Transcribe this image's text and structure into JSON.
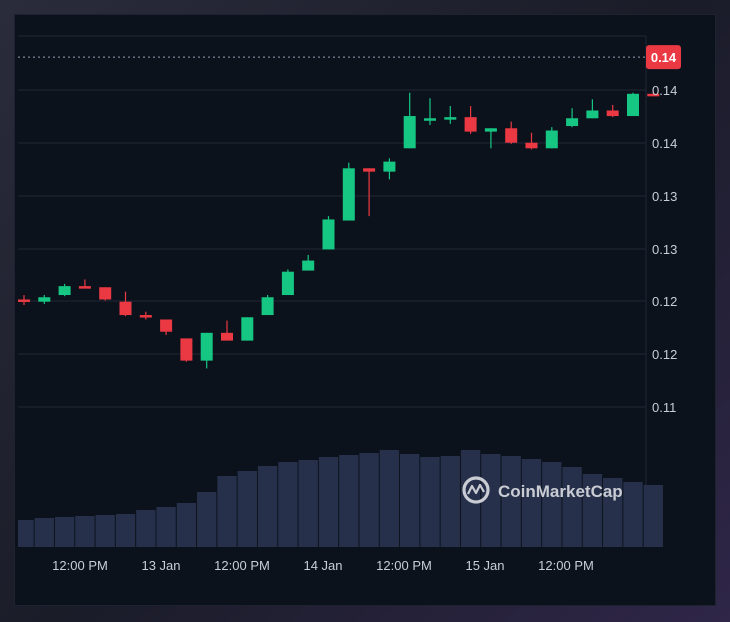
{
  "chart_data": {
    "type": "candlestick",
    "x_ticks": [
      "12:00 PM",
      "13 Jan",
      "12:00 PM",
      "14 Jan",
      "12:00 PM",
      "15 Jan",
      "12:00 PM"
    ],
    "y_ticks": [
      "0.14",
      "0.14",
      "0.13",
      "0.13",
      "0.12",
      "0.12",
      "0.11"
    ],
    "ylim": [
      0.1061,
      0.1419
    ],
    "last_price": 0.14,
    "last_price_label": "0.14",
    "colors": {
      "up": "#16c784",
      "down": "#ea3943",
      "volume": "#27304b",
      "grid": "#1f2735"
    },
    "candles": [
      {
        "o": 0.1182,
        "h": 0.1186,
        "l": 0.1177,
        "c": 0.118
      },
      {
        "o": 0.118,
        "h": 0.1186,
        "l": 0.1178,
        "c": 0.1184
      },
      {
        "o": 0.1186,
        "h": 0.1196,
        "l": 0.1185,
        "c": 0.1194
      },
      {
        "o": 0.1194,
        "h": 0.12,
        "l": 0.1192,
        "c": 0.1193
      },
      {
        "o": 0.1193,
        "h": 0.1193,
        "l": 0.1181,
        "c": 0.1182
      },
      {
        "o": 0.118,
        "h": 0.1189,
        "l": 0.1167,
        "c": 0.1168
      },
      {
        "o": 0.1168,
        "h": 0.1171,
        "l": 0.1164,
        "c": 0.1166
      },
      {
        "o": 0.1164,
        "h": 0.1164,
        "l": 0.115,
        "c": 0.1153
      },
      {
        "o": 0.1147,
        "h": 0.1147,
        "l": 0.1126,
        "c": 0.1127
      },
      {
        "o": 0.1127,
        "h": 0.1152,
        "l": 0.112,
        "c": 0.1152
      },
      {
        "o": 0.1152,
        "h": 0.1163,
        "l": 0.1145,
        "c": 0.1145
      },
      {
        "o": 0.1145,
        "h": 0.1166,
        "l": 0.1145,
        "c": 0.1166
      },
      {
        "o": 0.1168,
        "h": 0.1186,
        "l": 0.1168,
        "c": 0.1184
      },
      {
        "o": 0.1186,
        "h": 0.1209,
        "l": 0.1186,
        "c": 0.1207
      },
      {
        "o": 0.1208,
        "h": 0.1222,
        "l": 0.1208,
        "c": 0.1217
      },
      {
        "o": 0.1227,
        "h": 0.1257,
        "l": 0.1227,
        "c": 0.1254
      },
      {
        "o": 0.1253,
        "h": 0.1305,
        "l": 0.1253,
        "c": 0.13
      },
      {
        "o": 0.13,
        "h": 0.13,
        "l": 0.1257,
        "c": 0.1297
      },
      {
        "o": 0.1297,
        "h": 0.1309,
        "l": 0.129,
        "c": 0.1306
      },
      {
        "o": 0.1318,
        "h": 0.1368,
        "l": 0.1318,
        "c": 0.1347
      },
      {
        "o": 0.1345,
        "h": 0.1363,
        "l": 0.1339,
        "c": 0.1345
      },
      {
        "o": 0.1345,
        "h": 0.1356,
        "l": 0.134,
        "c": 0.1346
      },
      {
        "o": 0.1346,
        "h": 0.1356,
        "l": 0.1331,
        "c": 0.1333
      },
      {
        "o": 0.1333,
        "h": 0.1336,
        "l": 0.1318,
        "c": 0.1336
      },
      {
        "o": 0.1336,
        "h": 0.1342,
        "l": 0.1322,
        "c": 0.1323
      },
      {
        "o": 0.1323,
        "h": 0.1332,
        "l": 0.1317,
        "c": 0.1318
      },
      {
        "o": 0.1318,
        "h": 0.1337,
        "l": 0.1318,
        "c": 0.1334
      },
      {
        "o": 0.1338,
        "h": 0.1354,
        "l": 0.1337,
        "c": 0.1345
      },
      {
        "o": 0.1345,
        "h": 0.1362,
        "l": 0.1345,
        "c": 0.1352
      },
      {
        "o": 0.1352,
        "h": 0.1357,
        "l": 0.1346,
        "c": 0.1347
      },
      {
        "o": 0.1347,
        "h": 0.1368,
        "l": 0.1347,
        "c": 0.1367
      },
      {
        "o": 0.1367,
        "h": 0.1368,
        "l": 0.1365,
        "c": 0.1366
      }
    ],
    "volumes": [
      27,
      29,
      30,
      31,
      32,
      33,
      37,
      40,
      44,
      55,
      71,
      76,
      81,
      85,
      87,
      90,
      92,
      94,
      97,
      93,
      90,
      91,
      97,
      93,
      91,
      88,
      85,
      80,
      73,
      69,
      65,
      62
    ]
  },
  "watermark": {
    "text": "CoinMarketCap",
    "icon": "coinmarketcap-logo-icon"
  }
}
